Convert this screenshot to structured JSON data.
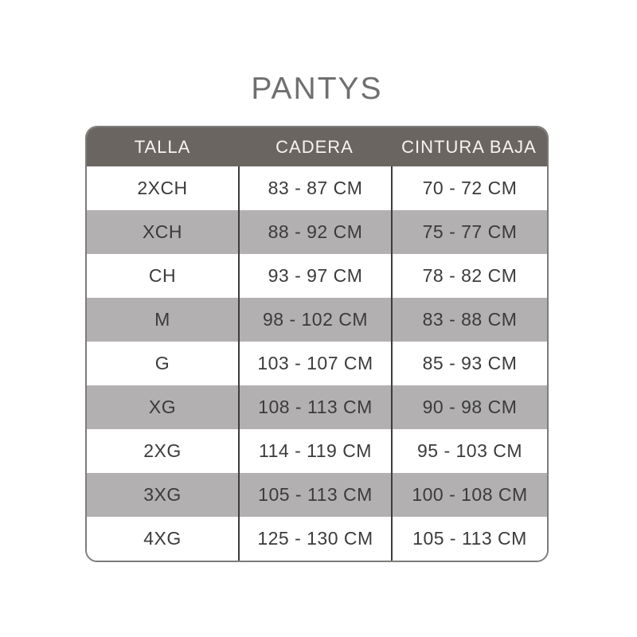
{
  "chart_data": {
    "type": "table",
    "title": "PANTYS",
    "columns": [
      "TALLA",
      "CADERA",
      "CINTURA BAJA"
    ],
    "rows": [
      [
        "2XCH",
        "83 - 87 CM",
        "70 - 72 CM"
      ],
      [
        "XCH",
        "88 - 92 CM",
        "75 - 77 CM"
      ],
      [
        "CH",
        "93 - 97 CM",
        "78 - 82 CM"
      ],
      [
        "M",
        "98 - 102 CM",
        "83 - 88 CM"
      ],
      [
        "G",
        "103 - 107 CM",
        "85 - 93 CM"
      ],
      [
        "XG",
        "108 - 113 CM",
        "90 - 98 CM"
      ],
      [
        "2XG",
        "114 - 119 CM",
        "95 - 103 CM"
      ],
      [
        "3XG",
        "105 - 113 CM",
        "100 - 108 CM"
      ],
      [
        "4XG",
        "125 - 130 CM",
        "105 - 113 CM"
      ]
    ],
    "units": "CM",
    "layout": {
      "striped": true,
      "header_position": "top",
      "column_dividers": true
    }
  },
  "colors": {
    "header_bg": "#6b6561",
    "header_text": "#f5f4f3",
    "row_alt_bg": "#b2b0b1",
    "body_text": "#3b3b3b",
    "title_text": "#6f6f6f",
    "border": "#7e7c7a",
    "divider": "#3c3c3c"
  }
}
